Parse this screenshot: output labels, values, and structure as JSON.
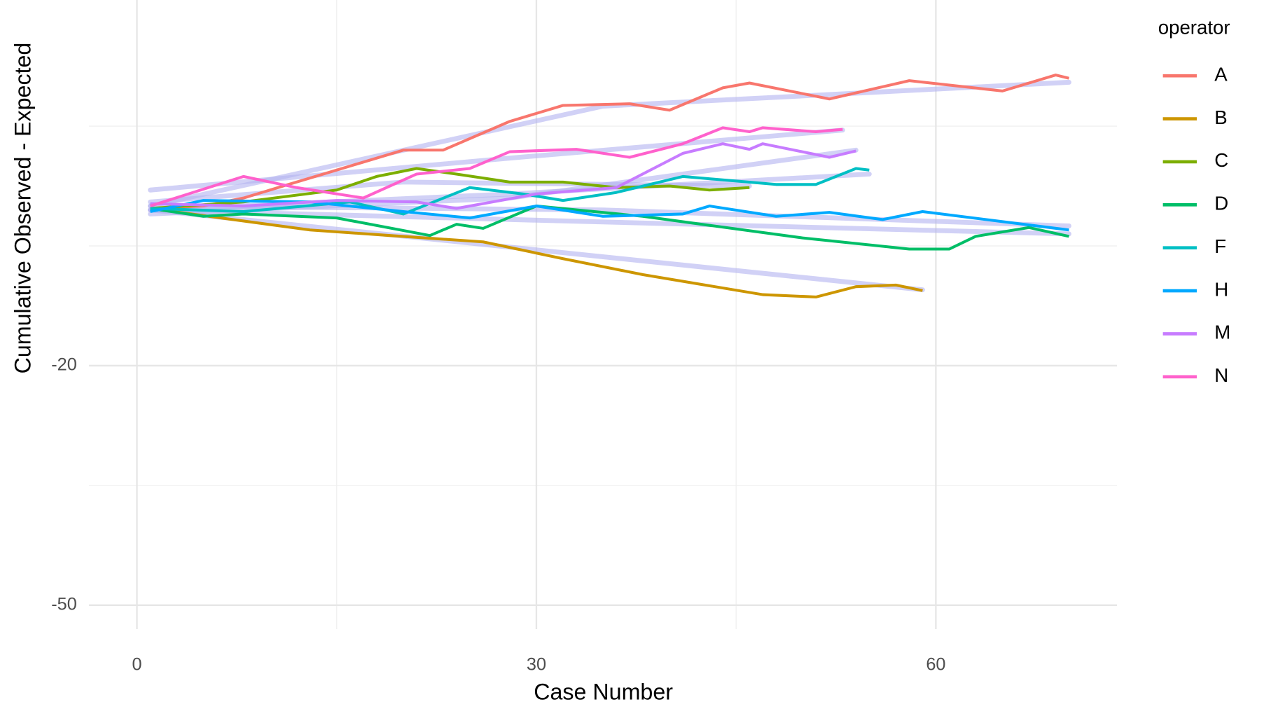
{
  "chart_data": {
    "type": "line",
    "x_label": "Case Number",
    "y_label": "Cumulative Observed - Expected",
    "legend_title": "operator",
    "legend_position": "right",
    "grid": true,
    "xlim": [
      -3.6,
      73.6
    ],
    "ylim": [
      -53,
      25.8
    ],
    "xticks": [
      0,
      30,
      60
    ],
    "yticks": [
      -50,
      -20
    ],
    "x_minor_grid": [
      15,
      45
    ],
    "y_minor_grid": [
      -35,
      -5,
      10
    ],
    "fit_color": "#b3b3f0",
    "series": [
      {
        "name": "A",
        "color": "#F8766D",
        "x": [
          1,
          5,
          8,
          11,
          16,
          20,
          23,
          28,
          32,
          37,
          40,
          44,
          46,
          52,
          58,
          65,
          69,
          70
        ],
        "values": [
          -0.3,
          0,
          1,
          2.5,
          5,
          7,
          7,
          10.6,
          12.6,
          12.8,
          12,
          14.8,
          15.4,
          13.4,
          15.7,
          14.4,
          16.4,
          16
        ],
        "fit_x": [
          1,
          35,
          70
        ],
        "fit_values": [
          0,
          12.5,
          15.5
        ]
      },
      {
        "name": "B",
        "color": "#CD9600",
        "x": [
          1,
          13,
          19,
          26,
          32,
          38,
          47,
          51,
          54,
          57,
          59
        ],
        "values": [
          -0.3,
          -3,
          -3.7,
          -4.5,
          -6.6,
          -8.6,
          -11.1,
          -11.4,
          -10.1,
          -9.9,
          -10.6
        ],
        "fit_x": [
          1,
          30,
          59
        ],
        "fit_values": [
          -0.5,
          -5.5,
          -10.5
        ]
      },
      {
        "name": "C",
        "color": "#7CAE00",
        "x": [
          1,
          8,
          15,
          18,
          21,
          24,
          28,
          32,
          36,
          40,
          43,
          46
        ],
        "values": [
          -0.3,
          0.5,
          2,
          3.7,
          4.7,
          4,
          3,
          3,
          2.3,
          2.5,
          2,
          2.3
        ],
        "fit_x": [
          1,
          20,
          46
        ],
        "fit_values": [
          0.5,
          3,
          2.5
        ]
      },
      {
        "name": "D",
        "color": "#00BE67",
        "x": [
          1,
          5,
          8,
          15,
          22,
          24,
          26,
          30,
          38,
          50,
          58,
          61,
          63,
          67,
          70
        ],
        "values": [
          -0.3,
          -1.3,
          -1,
          -1.5,
          -3.7,
          -2.3,
          -2.8,
          0,
          -1.3,
          -4,
          -5.4,
          -5.4,
          -3.8,
          -2.7,
          -3.8
        ],
        "fit_x": [
          1,
          35,
          70
        ],
        "fit_values": [
          -0.5,
          -2,
          -3.5
        ]
      },
      {
        "name": "F",
        "color": "#00BFC4",
        "x": [
          1,
          8,
          16,
          20,
          25,
          29,
          32,
          36,
          41,
          48,
          51,
          54,
          55
        ],
        "values": [
          -0.3,
          -0.7,
          0.5,
          -1,
          2.3,
          1.5,
          0.7,
          1.7,
          3.7,
          2.7,
          2.7,
          4.7,
          4.5
        ],
        "fit_x": [
          1,
          28,
          55
        ],
        "fit_values": [
          -0.5,
          1.5,
          4
        ]
      },
      {
        "name": "H",
        "color": "#00A9FF",
        "x": [
          1,
          5,
          13,
          20,
          25,
          30,
          35,
          41,
          43,
          48,
          52,
          56,
          59,
          70
        ],
        "values": [
          -0.7,
          0.7,
          0.5,
          -0.7,
          -1.5,
          0,
          -1.3,
          -1,
          0,
          -1.3,
          -0.8,
          -1.7,
          -0.7,
          -3
        ],
        "fit_x": [
          1,
          35,
          70
        ],
        "fit_values": [
          0,
          -0.5,
          -2.5
        ]
      },
      {
        "name": "M",
        "color": "#C77CFF",
        "x": [
          1,
          8,
          15,
          21,
          24,
          30,
          36,
          41,
          44,
          46,
          47,
          52,
          54
        ],
        "values": [
          0.3,
          0,
          0.7,
          0.5,
          -0.3,
          1.5,
          2.3,
          6.6,
          7.8,
          7.1,
          7.8,
          6.1,
          6.9
        ],
        "fit_x": [
          1,
          28,
          54
        ],
        "fit_values": [
          -1,
          1,
          7
        ]
      },
      {
        "name": "N",
        "color": "#FF61CC",
        "x": [
          1,
          8,
          12,
          17,
          21,
          25,
          28,
          33,
          37,
          41,
          44,
          46,
          47,
          51,
          53
        ],
        "values": [
          0,
          3.7,
          2.3,
          1,
          4,
          4.7,
          6.8,
          7.1,
          6.1,
          7.8,
          9.8,
          9.3,
          9.8,
          9.3,
          9.6
        ],
        "fit_x": [
          1,
          28,
          53
        ],
        "fit_values": [
          2,
          6,
          9.5
        ]
      }
    ]
  }
}
